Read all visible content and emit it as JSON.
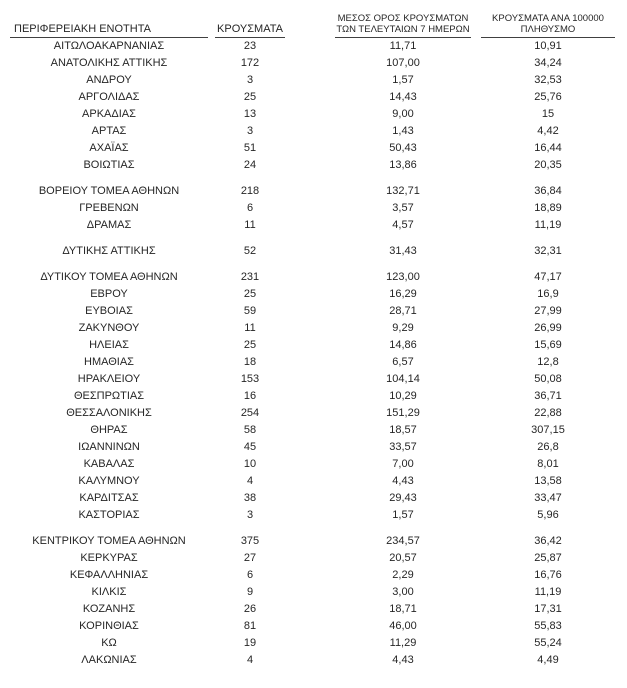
{
  "page": {
    "background": "#ffffff",
    "text_color": "#262626",
    "rule_color": "#404040"
  },
  "table": {
    "headers": {
      "region": "ΠΕΡΙΦΕΡΕΙΑΚΗ ΕΝΟΤΗΤΑ",
      "cases": "ΚΡΟΥΣΜΑΤΑ",
      "avg7_line1": "ΜΕΣΟΣ ΟΡΟΣ ΚΡΟΥΣΜΑΤΩΝ",
      "avg7_line2": "ΤΩΝ ΤΕΛΕΥΤΑΙΩΝ 7 ΗΜΕΡΩΝ",
      "per100k_line1": "ΚΡΟΥΣΜΑΤΑ ΑΝΑ 100000",
      "per100k_line2": "ΠΛΗΘΥΣΜΟ"
    },
    "rows": [
      [
        "ΑΙΤΩΛΟΑΚΑΡΝΑΝΙΑΣ",
        "23",
        "11,71",
        "10,91"
      ],
      [
        "ΑΝΑΤΟΛΙΚΗΣ ΑΤΤΙΚΗΣ",
        "172",
        "107,00",
        "34,24"
      ],
      [
        "ΑΝΔΡΟΥ",
        "3",
        "1,57",
        "32,53"
      ],
      [
        "ΑΡΓΟΛΙΔΑΣ",
        "25",
        "14,43",
        "25,76"
      ],
      [
        "ΑΡΚΑΔΙΑΣ",
        "13",
        "9,00",
        "15"
      ],
      [
        "ΑΡΤΑΣ",
        "3",
        "1,43",
        "4,42"
      ],
      [
        "ΑΧΑΪΑΣ",
        "51",
        "50,43",
        "16,44"
      ],
      [
        "ΒΟΙΩΤΙΑΣ",
        "24",
        "13,86",
        "20,35"
      ],
      null,
      [
        "ΒΟΡΕΙΟΥ ΤΟΜΕΑ ΑΘΗΝΩΝ",
        "218",
        "132,71",
        "36,84"
      ],
      [
        "ΓΡΕΒΕΝΩΝ",
        "6",
        "3,57",
        "18,89"
      ],
      [
        "ΔΡΑΜΑΣ",
        "11",
        "4,57",
        "11,19"
      ],
      null,
      [
        "ΔΥΤΙΚΗΣ ΑΤΤΙΚΗΣ",
        "52",
        "31,43",
        "32,31"
      ],
      null,
      [
        "ΔΥΤΙΚΟΥ ΤΟΜΕΑ ΑΘΗΝΩΝ",
        "231",
        "123,00",
        "47,17"
      ],
      [
        "ΕΒΡΟΥ",
        "25",
        "16,29",
        "16,9"
      ],
      [
        "ΕΥΒΟΙΑΣ",
        "59",
        "28,71",
        "27,99"
      ],
      [
        "ΖΑΚΥΝΘΟΥ",
        "11",
        "9,29",
        "26,99"
      ],
      [
        "ΗΛΕΙΑΣ",
        "25",
        "14,86",
        "15,69"
      ],
      [
        "ΗΜΑΘΙΑΣ",
        "18",
        "6,57",
        "12,8"
      ],
      [
        "ΗΡΑΚΛΕΙΟΥ",
        "153",
        "104,14",
        "50,08"
      ],
      [
        "ΘΕΣΠΡΩΤΙΑΣ",
        "16",
        "10,29",
        "36,71"
      ],
      [
        "ΘΕΣΣΑΛΟΝΙΚΗΣ",
        "254",
        "151,29",
        "22,88"
      ],
      [
        "ΘΗΡΑΣ",
        "58",
        "18,57",
        "307,15"
      ],
      [
        "ΙΩΑΝΝΙΝΩΝ",
        "45",
        "33,57",
        "26,8"
      ],
      [
        "ΚΑΒΑΛΑΣ",
        "10",
        "7,00",
        "8,01"
      ],
      [
        "ΚΑΛΥΜΝΟΥ",
        "4",
        "4,43",
        "13,58"
      ],
      [
        "ΚΑΡΔΙΤΣΑΣ",
        "38",
        "29,43",
        "33,47"
      ],
      [
        "ΚΑΣΤΟΡΙΑΣ",
        "3",
        "1,57",
        "5,96"
      ],
      null,
      [
        "ΚΕΝΤΡΙΚΟΥ ΤΟΜΕΑ ΑΘΗΝΩΝ",
        "375",
        "234,57",
        "36,42"
      ],
      [
        "ΚΕΡΚΥΡΑΣ",
        "27",
        "20,57",
        "25,87"
      ],
      [
        "ΚΕΦΑΛΛΗΝΙΑΣ",
        "6",
        "2,29",
        "16,76"
      ],
      [
        "ΚΙΛΚΙΣ",
        "9",
        "3,00",
        "11,19"
      ],
      [
        "ΚΟΖΑΝΗΣ",
        "26",
        "18,71",
        "17,31"
      ],
      [
        "ΚΟΡΙΝΘΙΑΣ",
        "81",
        "46,00",
        "55,83"
      ],
      [
        "ΚΩ",
        "19",
        "11,29",
        "55,24"
      ],
      [
        "ΛΑΚΩΝΙΑΣ",
        "4",
        "4,43",
        "4,49"
      ]
    ]
  }
}
